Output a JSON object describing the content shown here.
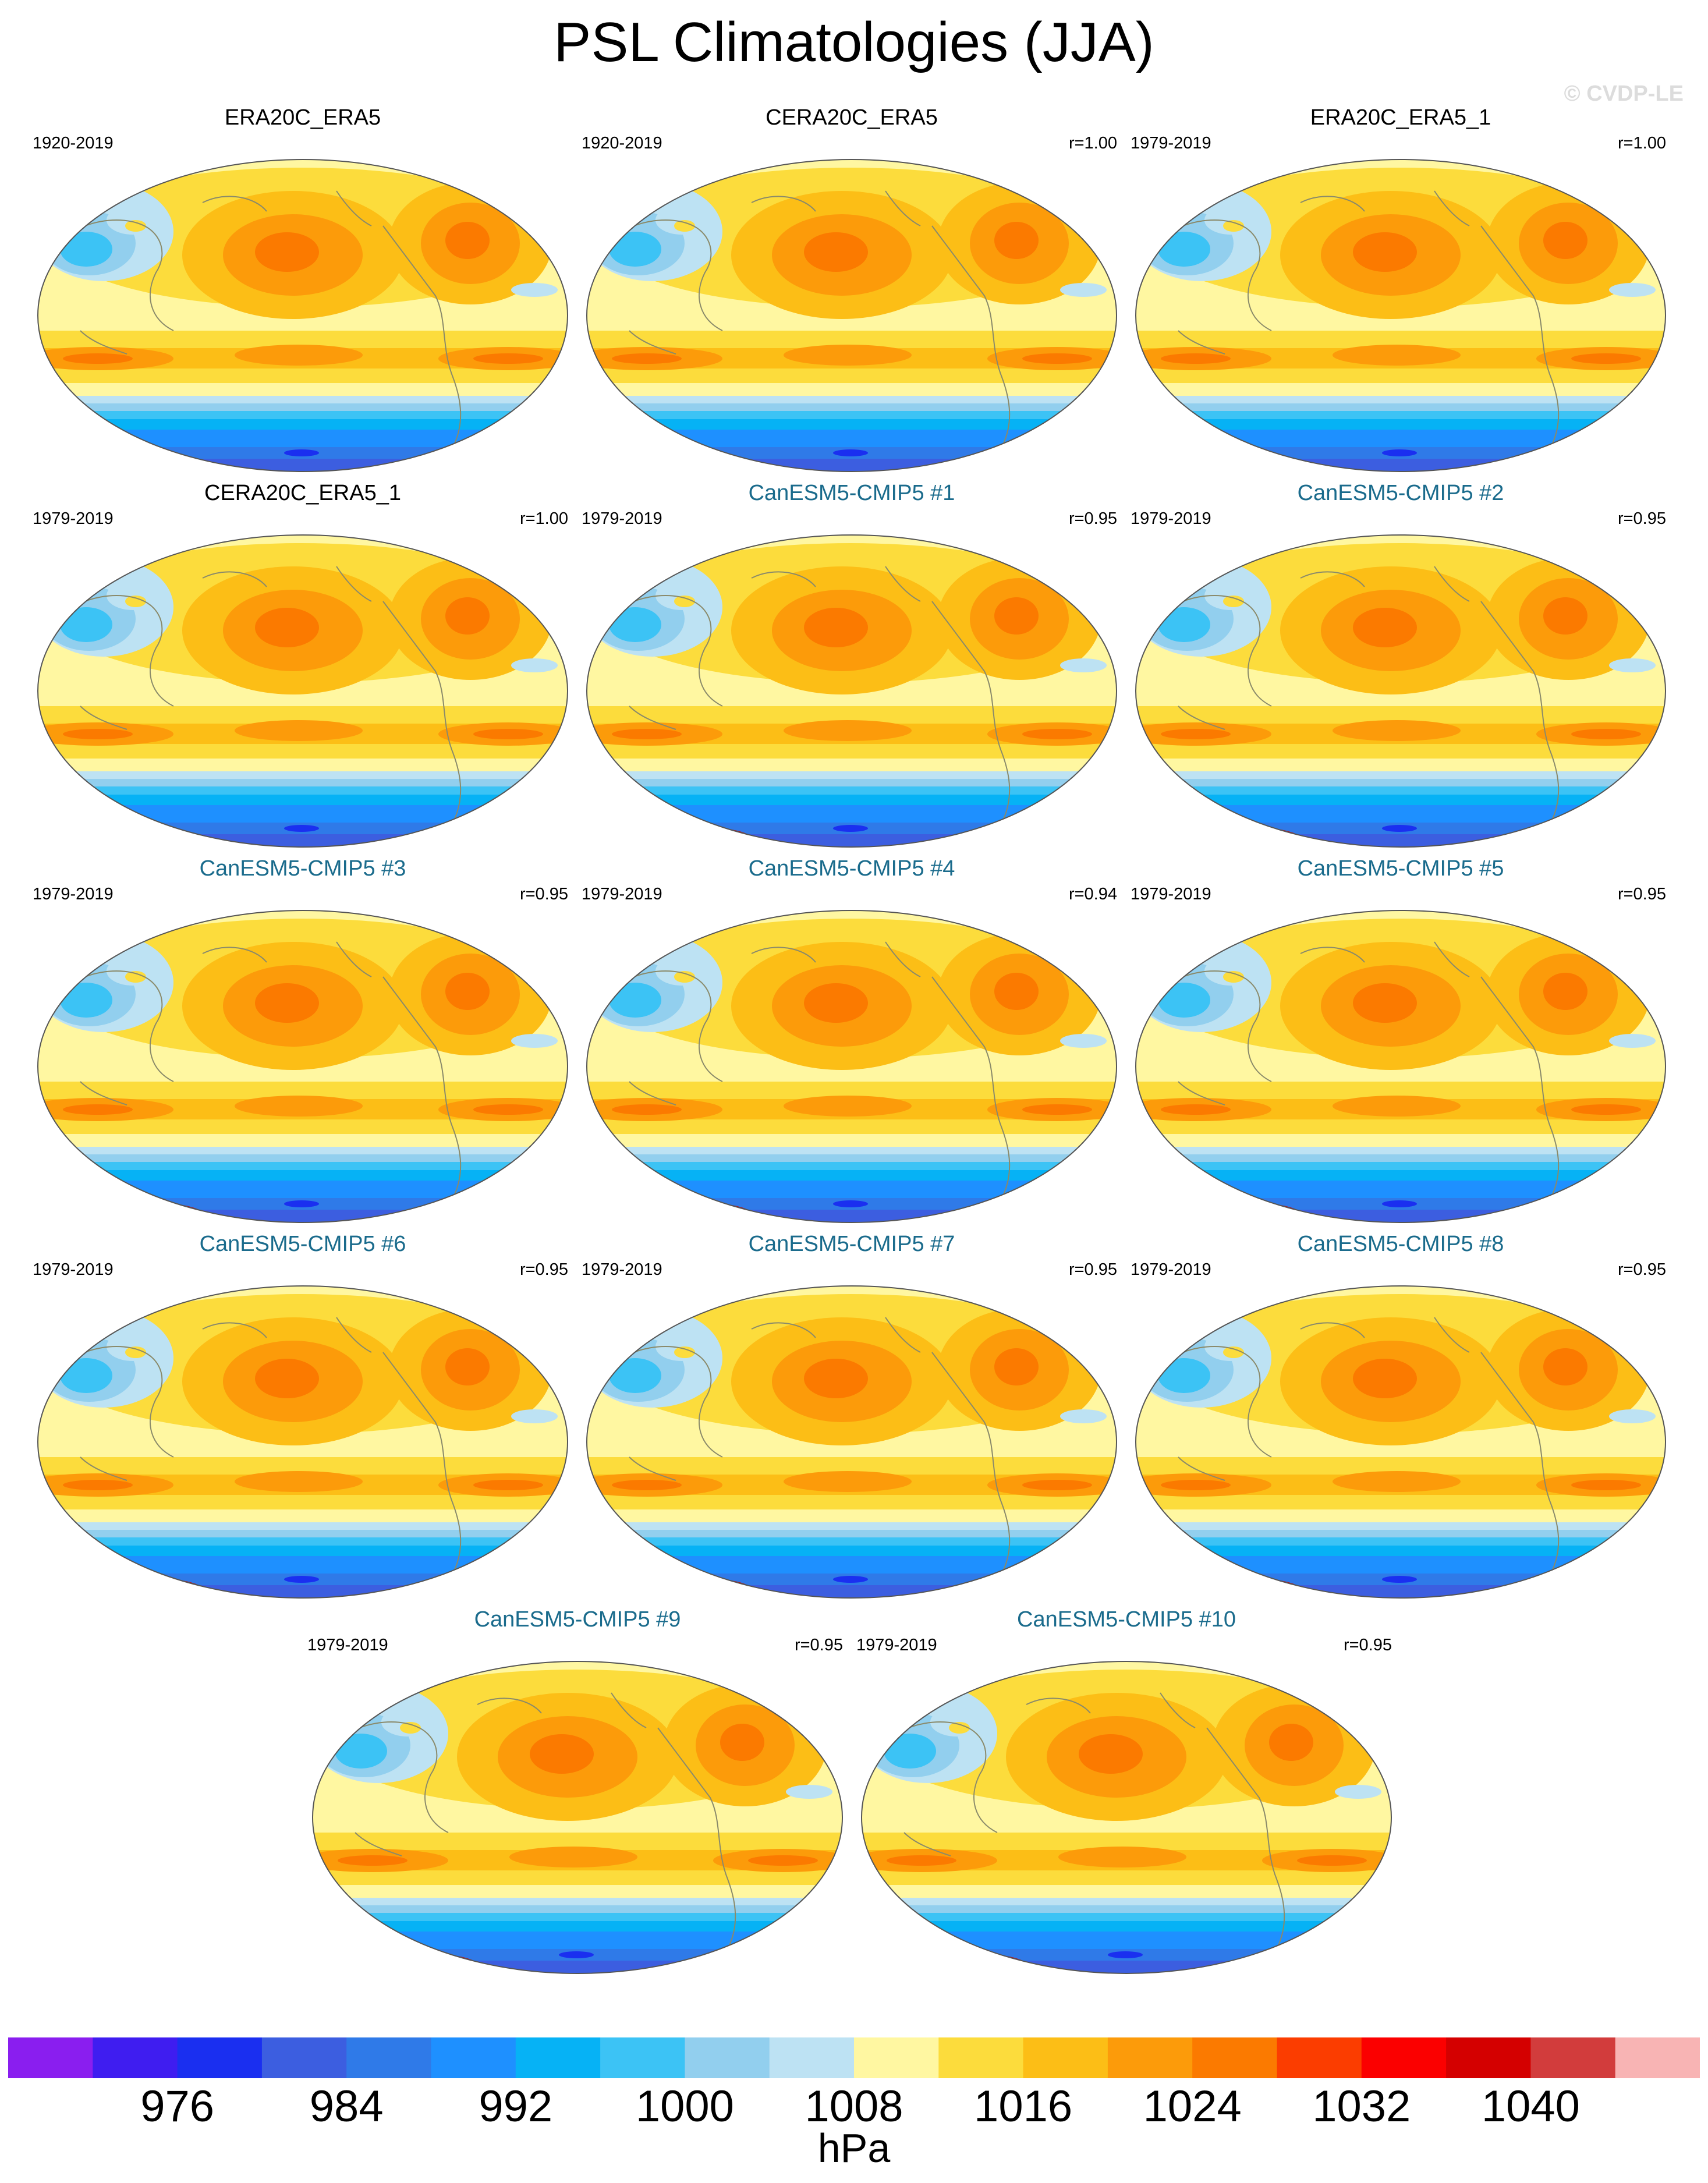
{
  "title": "PSL Climatologies (JJA)",
  "copyright": "© CVDP-LE",
  "colorbar": {
    "units": "hPa",
    "colors": [
      "#8a1eef",
      "#3f1df0",
      "#1a2ff0",
      "#3c5ee0",
      "#2f7ae8",
      "#1e90ff",
      "#06b2f5",
      "#3cc3f5",
      "#92cfee",
      "#bde2f3",
      "#fff7a1",
      "#fcdc3c",
      "#fcbe16",
      "#fc9b0a",
      "#fb7a00",
      "#fb3d00",
      "#fb0000",
      "#d40000",
      "#d23c3c",
      "#f8b4b4"
    ],
    "tick_labels": [
      "976",
      "984",
      "992",
      "1000",
      "1008",
      "1016",
      "1024",
      "1032",
      "1040"
    ]
  },
  "chart_data": [
    {
      "type": "heatmap",
      "title": "ERA20C_ERA5",
      "period": "1920-2019",
      "corr": ""
    },
    {
      "type": "heatmap",
      "title": "CERA20C_ERA5",
      "period": "1920-2019",
      "corr": "r=1.00"
    },
    {
      "type": "heatmap",
      "title": "ERA20C_ERA5_1",
      "period": "1979-2019",
      "corr": "r=1.00"
    },
    {
      "type": "heatmap",
      "title": "CERA20C_ERA5_1",
      "period": "1979-2019",
      "corr": "r=1.00"
    },
    {
      "type": "heatmap",
      "title": "CanESM5-CMIP5 #1",
      "period": "1979-2019",
      "corr": "r=0.95"
    },
    {
      "type": "heatmap",
      "title": "CanESM5-CMIP5 #2",
      "period": "1979-2019",
      "corr": "r=0.95"
    },
    {
      "type": "heatmap",
      "title": "CanESM5-CMIP5 #3",
      "period": "1979-2019",
      "corr": "r=0.95"
    },
    {
      "type": "heatmap",
      "title": "CanESM5-CMIP5 #4",
      "period": "1979-2019",
      "corr": "r=0.94"
    },
    {
      "type": "heatmap",
      "title": "CanESM5-CMIP5 #5",
      "period": "1979-2019",
      "corr": "r=0.95"
    },
    {
      "type": "heatmap",
      "title": "CanESM5-CMIP5 #6",
      "period": "1979-2019",
      "corr": "r=0.95"
    },
    {
      "type": "heatmap",
      "title": "CanESM5-CMIP5 #7",
      "period": "1979-2019",
      "corr": "r=0.95"
    },
    {
      "type": "heatmap",
      "title": "CanESM5-CMIP5 #8",
      "period": "1979-2019",
      "corr": "r=0.95"
    },
    {
      "type": "heatmap",
      "title": "CanESM5-CMIP5 #9",
      "period": "1979-2019",
      "corr": "r=0.95"
    },
    {
      "type": "heatmap",
      "title": "CanESM5-CMIP5 #10",
      "period": "1979-2019",
      "corr": "r=0.95"
    }
  ]
}
